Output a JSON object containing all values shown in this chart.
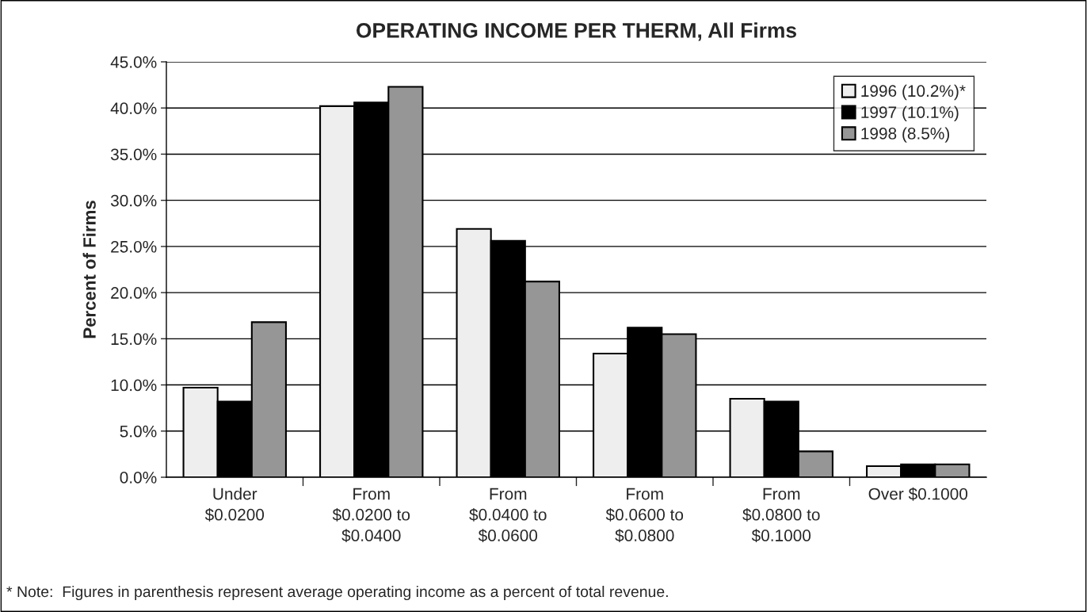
{
  "chart_data": {
    "type": "bar",
    "title": "OPERATING INCOME PER THERM, All Firms",
    "ylabel": "Percent of Firms",
    "categories": [
      "Under\n$0.0200",
      "From\n$0.0200 to\n$0.0400",
      "From\n$0.0400 to\n$0.0600",
      "From\n$0.0600 to\n$0.0800",
      "From\n$0.0800 to\n$0.1000",
      "Over $0.1000"
    ],
    "series": [
      {
        "name": "1996 (10.2%)*",
        "color": "#eeeeee",
        "values": [
          9.7,
          40.2,
          26.9,
          13.4,
          8.5,
          1.2
        ]
      },
      {
        "name": "1997 (10.1%)",
        "color": "#000000",
        "values": [
          8.2,
          40.6,
          25.6,
          16.2,
          8.2,
          1.4
        ]
      },
      {
        "name": "1998 (8.5%)",
        "color": "#969696",
        "values": [
          16.8,
          42.3,
          21.2,
          15.5,
          2.8,
          1.4
        ]
      }
    ],
    "ylim": [
      0,
      45
    ],
    "yticks": [
      {
        "value": 0,
        "label": "0.0%"
      },
      {
        "value": 5,
        "label": "5.0%"
      },
      {
        "value": 10,
        "label": "10.0%"
      },
      {
        "value": 15,
        "label": "15.0%"
      },
      {
        "value": 20,
        "label": "20.0%"
      },
      {
        "value": 25,
        "label": "25.0%"
      },
      {
        "value": 30,
        "label": "30.0%"
      },
      {
        "value": 35,
        "label": "35.0%"
      },
      {
        "value": 40,
        "label": "40.0%"
      },
      {
        "value": 45,
        "label": "45.0%"
      }
    ],
    "grid": "y",
    "legend": "top right",
    "annotations": [
      "* Note:  Figures in parenthesis represent average operating income as a percent of total revenue."
    ]
  }
}
